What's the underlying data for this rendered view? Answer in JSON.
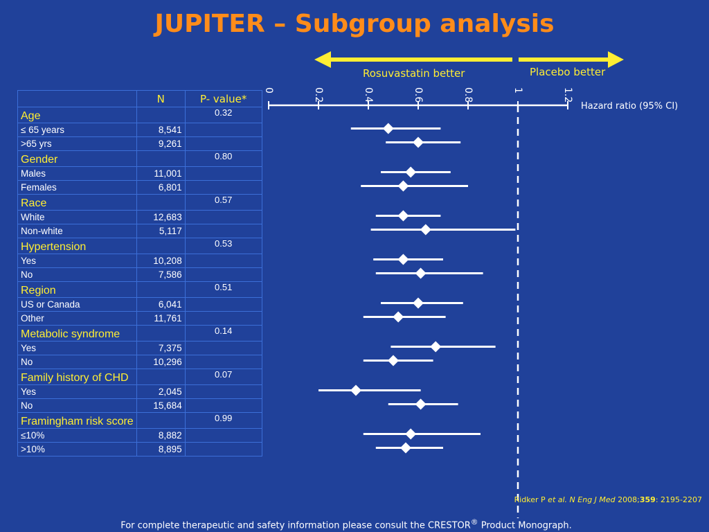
{
  "title": "JUPITER – Subgroup analysis",
  "direction_labels": {
    "left": "Rosuvastatin better",
    "right": "Placebo better"
  },
  "table": {
    "headers": {
      "label": "",
      "n": "N",
      "p": "P- value*"
    },
    "groups": [
      {
        "name": "Age",
        "p": "0.32",
        "rows": [
          {
            "label": "≤ 65 years",
            "n": "8,541"
          },
          {
            "label": ">65 yrs",
            "n": "9,261"
          }
        ]
      },
      {
        "name": "Gender",
        "p": "0.80",
        "rows": [
          {
            "label": "Males",
            "n": "11,001"
          },
          {
            "label": "Females",
            "n": "6,801"
          }
        ]
      },
      {
        "name": "Race",
        "p": "0.57",
        "rows": [
          {
            "label": "White",
            "n": "12,683"
          },
          {
            "label": "Non-white",
            "n": "5,117"
          }
        ]
      },
      {
        "name": "Hypertension",
        "p": "0.53",
        "rows": [
          {
            "label": "Yes",
            "n": "10,208"
          },
          {
            "label": "No",
            "n": "7,586"
          }
        ]
      },
      {
        "name": "Region",
        "p": "0.51",
        "rows": [
          {
            "label": "US or Canada",
            "n": "6,041"
          },
          {
            "label": "Other",
            "n": "11,761"
          }
        ]
      },
      {
        "name": "Metabolic syndrome",
        "p": "0.14",
        "rows": [
          {
            "label": "Yes",
            "n": "7,375"
          },
          {
            "label": "No",
            "n": "10,296"
          }
        ]
      },
      {
        "name": "Family history of CHD",
        "p": "0.07",
        "rows": [
          {
            "label": "Yes",
            "n": "2,045"
          },
          {
            "label": "No",
            "n": "15,684"
          }
        ]
      },
      {
        "name": "Framingham risk score",
        "p": "0.99",
        "rows": [
          {
            "label": "≤10%",
            "n": "8,882"
          },
          {
            "label": ">10%",
            "n": "8,895"
          }
        ]
      }
    ]
  },
  "chart_data": {
    "type": "scatter",
    "xlabel": "Hazard ratio (95% CI)",
    "xlim": [
      0,
      1.2
    ],
    "xticks": [
      "0",
      "0.2",
      "0.4",
      "0.6",
      "0.8",
      "1",
      "1.2"
    ],
    "reference_line": 1,
    "series": [
      {
        "points": [
          {
            "subgroup": "Age ≤ 65 years",
            "hr": 0.48,
            "low": 0.33,
            "high": 0.69
          },
          {
            "subgroup": "Age >65 yrs",
            "hr": 0.6,
            "low": 0.47,
            "high": 0.77
          },
          {
            "subgroup": "Males",
            "hr": 0.57,
            "low": 0.45,
            "high": 0.73
          },
          {
            "subgroup": "Females",
            "hr": 0.54,
            "low": 0.37,
            "high": 0.8
          },
          {
            "subgroup": "White",
            "hr": 0.54,
            "low": 0.43,
            "high": 0.69
          },
          {
            "subgroup": "Non-white",
            "hr": 0.63,
            "low": 0.41,
            "high": 0.99
          },
          {
            "subgroup": "Hypertension Yes",
            "hr": 0.54,
            "low": 0.42,
            "high": 0.7
          },
          {
            "subgroup": "Hypertension No",
            "hr": 0.61,
            "low": 0.43,
            "high": 0.86
          },
          {
            "subgroup": "US or Canada",
            "hr": 0.6,
            "low": 0.45,
            "high": 0.78
          },
          {
            "subgroup": "Other",
            "hr": 0.52,
            "low": 0.38,
            "high": 0.71
          },
          {
            "subgroup": "Metabolic syndrome Yes",
            "hr": 0.67,
            "low": 0.49,
            "high": 0.91
          },
          {
            "subgroup": "Metabolic syndrome No",
            "hr": 0.5,
            "low": 0.38,
            "high": 0.66
          },
          {
            "subgroup": "Family history of CHD Yes",
            "hr": 0.35,
            "low": 0.2,
            "high": 0.61
          },
          {
            "subgroup": "Family history of CHD No",
            "hr": 0.61,
            "low": 0.48,
            "high": 0.76
          },
          {
            "subgroup": "Framingham ≤10%",
            "hr": 0.57,
            "low": 0.38,
            "high": 0.85
          },
          {
            "subgroup": "Framingham >10%",
            "hr": 0.55,
            "low": 0.43,
            "high": 0.7
          }
        ]
      }
    ]
  },
  "reference": {
    "authors": "Ridker P ",
    "etal": "et al.",
    "journal": " N Eng J Med",
    "year": " 2008;",
    "volume": "359",
    "pages": ": 2195-2207"
  },
  "footer": {
    "text": "For complete therapeutic and safety information please consult the CRESTOR",
    "reg": "®",
    "text2": " Product Monograph."
  },
  "colors": {
    "background": "#20419a",
    "title": "#ff8c1a",
    "accent": "#ffee33",
    "grid": "#3c6fd8",
    "marks": "#ffffff"
  }
}
